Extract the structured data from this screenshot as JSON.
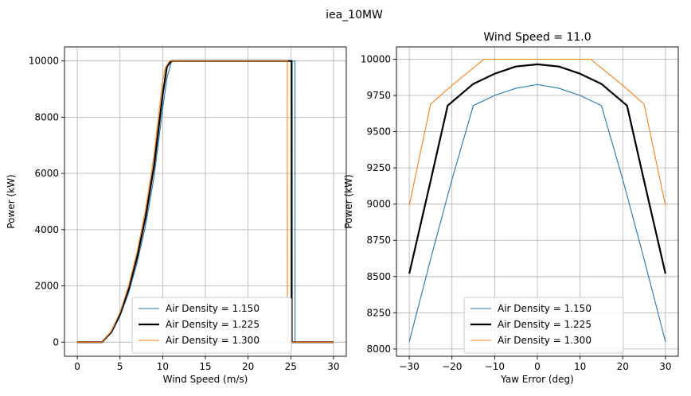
{
  "figure": {
    "suptitle": "iea_10MW"
  },
  "colors": {
    "blue": "#1f77b4",
    "black": "#000000",
    "orange": "#ff7f0e",
    "grid": "#b0b0b0"
  },
  "chart_data": [
    {
      "type": "line",
      "title": "",
      "xlabel": "Wind Speed (m/s)",
      "ylabel": "Power (kW)",
      "xlim": [
        -1.5,
        31.5
      ],
      "ylim": [
        -500,
        10500
      ],
      "xticks": [
        0,
        5,
        10,
        15,
        20,
        25,
        30
      ],
      "yticks": [
        0,
        2000,
        4000,
        6000,
        8000,
        10000
      ],
      "xtick_labels": [
        "0",
        "5",
        "10",
        "15",
        "20",
        "25",
        "30"
      ],
      "ytick_labels": [
        "0",
        "2000",
        "4000",
        "6000",
        "8000",
        "10000"
      ],
      "grid": true,
      "legend_position": "lower-center",
      "series": [
        {
          "name": "Air Density = 1.150",
          "color": "#1f77b4",
          "linewidth": 1,
          "x": [
            0,
            2.9,
            4,
            5,
            6,
            7,
            8,
            9,
            10,
            10.5,
            11,
            11.2,
            25.49,
            25.5,
            30
          ],
          "y": [
            0,
            0,
            330,
            920,
            1740,
            2820,
            4150,
            5900,
            8300,
            9400,
            9950,
            10000,
            10000,
            0,
            0
          ]
        },
        {
          "name": "Air Density = 1.225",
          "color": "#000000",
          "linewidth": 2,
          "x": [
            0,
            2.9,
            4,
            5,
            6,
            7,
            8,
            9,
            10,
            10.5,
            11,
            25.1,
            25.11,
            30
          ],
          "y": [
            0,
            0,
            370,
            1000,
            1880,
            3020,
            4450,
            6300,
            8800,
            9800,
            10000,
            10000,
            0,
            0
          ]
        },
        {
          "name": "Air Density = 1.300",
          "color": "#ff7f0e",
          "linewidth": 1,
          "x": [
            0,
            2.9,
            4,
            5,
            6,
            7,
            8,
            9,
            10,
            10.3,
            10.8,
            24.59,
            24.6,
            30
          ],
          "y": [
            0,
            0,
            400,
            1060,
            1990,
            3200,
            4720,
            6680,
            9300,
            9750,
            10000,
            10000,
            0,
            0
          ]
        }
      ]
    },
    {
      "type": "line",
      "title": "Wind Speed = 11.0",
      "xlabel": "Yaw Error (deg)",
      "ylabel": "Power (kW)",
      "xlim": [
        -33,
        33
      ],
      "ylim": [
        7950,
        10085
      ],
      "xticks": [
        -30,
        -20,
        -10,
        0,
        10,
        20,
        30
      ],
      "yticks": [
        8000,
        8250,
        8500,
        8750,
        9000,
        9250,
        9500,
        9750,
        10000
      ],
      "xtick_labels": [
        "−30",
        "−20",
        "−10",
        "0",
        "10",
        "20",
        "30"
      ],
      "ytick_labels": [
        "8000",
        "8250",
        "8500",
        "8750",
        "9000",
        "9250",
        "9500",
        "9750",
        "10000"
      ],
      "grid": true,
      "legend_position": "lower-center",
      "series": [
        {
          "name": "Air Density = 1.150",
          "color": "#1f77b4",
          "linewidth": 1,
          "x": [
            -30,
            -25,
            -20,
            -15,
            -10,
            -5,
            0,
            5,
            10,
            15,
            20,
            25,
            30
          ],
          "y": [
            8050,
            8620,
            9170,
            9680,
            9750,
            9800,
            9825,
            9800,
            9750,
            9680,
            9170,
            8620,
            8050
          ]
        },
        {
          "name": "Air Density = 1.225",
          "color": "#000000",
          "linewidth": 2,
          "x": [
            -30,
            -25,
            -21,
            -15,
            -10,
            -5,
            0,
            5,
            10,
            15,
            21,
            25,
            30
          ],
          "y": [
            8520,
            9160,
            9680,
            9830,
            9900,
            9950,
            9965,
            9950,
            9900,
            9830,
            9680,
            9160,
            8520
          ]
        },
        {
          "name": "Air Density = 1.300",
          "color": "#ff7f0e",
          "linewidth": 1,
          "x": [
            -30,
            -25,
            -20,
            -15,
            -12.5,
            0,
            12.5,
            15,
            20,
            25,
            30
          ],
          "y": [
            8990,
            9690,
            9820,
            9940,
            10000,
            10000,
            10000,
            9940,
            9820,
            9690,
            8990
          ]
        }
      ]
    }
  ]
}
